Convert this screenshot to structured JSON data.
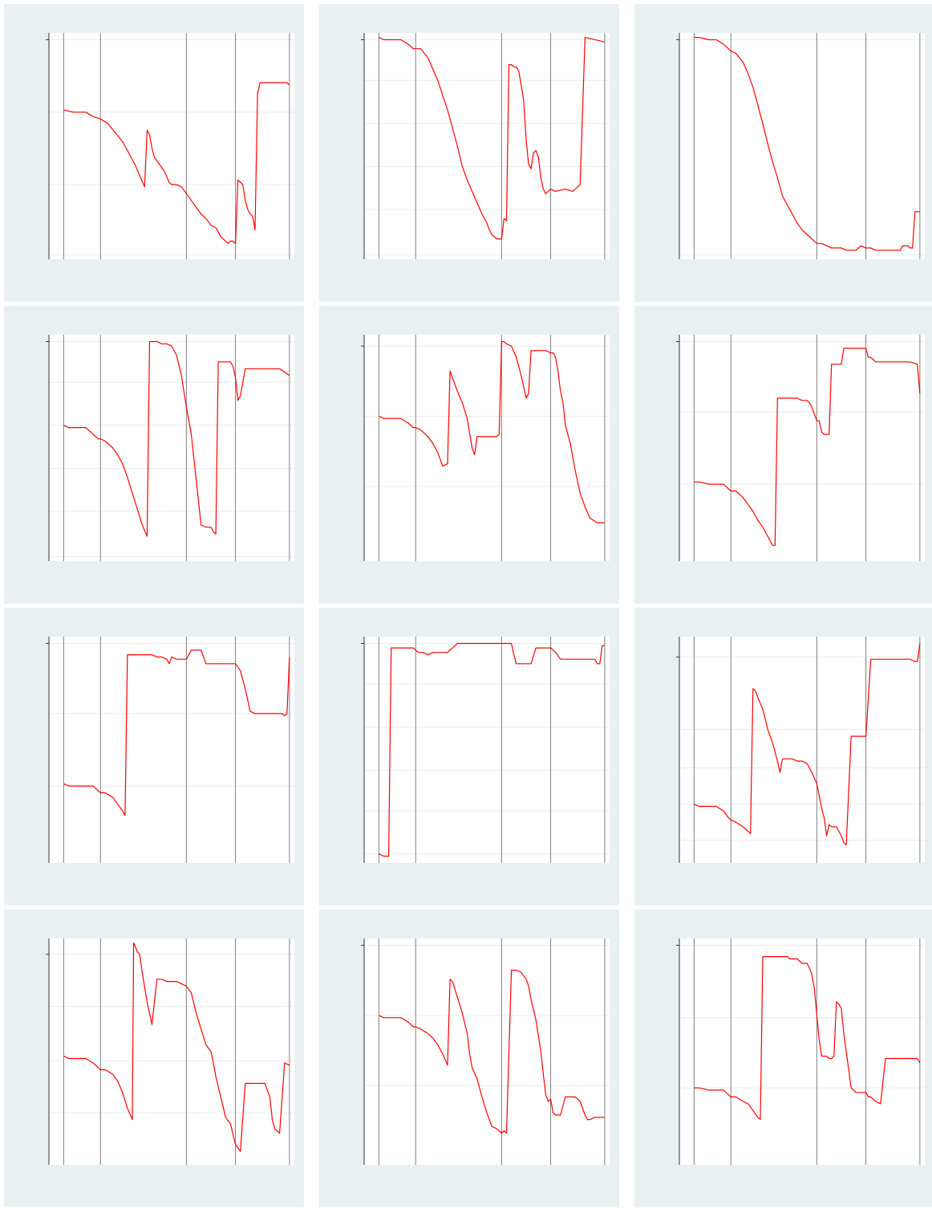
{
  "style": {
    "panel_bg": "#e9f0f2",
    "plot_bg": "#ffffff",
    "grid_color": "#ececec",
    "vline_color": "#7f7f7f",
    "axis_color": "#333333",
    "line_color": "#ff0000"
  },
  "chart_data": [
    {
      "type": "line",
      "xlim": [
        0,
        100
      ],
      "ylim": [
        0,
        100
      ],
      "yticks": [
        2,
        33,
        65,
        97
      ],
      "vlines": [
        6,
        21,
        56,
        76,
        98
      ],
      "grid": true,
      "x": [
        6,
        10,
        15,
        18,
        21,
        24,
        27,
        30,
        35,
        39,
        40,
        41,
        42,
        43,
        45,
        47,
        49,
        50,
        51,
        52,
        54,
        56,
        58,
        60,
        62,
        64,
        66,
        68,
        70,
        72,
        73,
        74,
        75,
        76,
        77,
        78,
        79,
        80,
        81,
        82,
        83,
        84,
        85,
        86,
        87,
        88,
        90,
        94,
        97,
        98
      ],
      "y": [
        66,
        65,
        65,
        63,
        62,
        60,
        56,
        52,
        42,
        32,
        57,
        55,
        49,
        45,
        42,
        39,
        34,
        33,
        33,
        33,
        32,
        29,
        26,
        23,
        20,
        18,
        15,
        14,
        10,
        8,
        7,
        8,
        8,
        7,
        35,
        34,
        33,
        26,
        22,
        20,
        19,
        13,
        73,
        78,
        78,
        78,
        78,
        78,
        78,
        77
      ]
    },
    {
      "type": "line",
      "xlim": [
        0,
        100
      ],
      "ylim": [
        0,
        100
      ],
      "yticks": [
        2,
        22,
        41,
        60,
        79,
        97
      ],
      "vlines": [
        6,
        21,
        56,
        76,
        98
      ],
      "grid": true,
      "x": [
        6,
        8,
        12,
        15,
        18,
        20,
        21,
        23,
        26,
        28,
        30,
        34,
        38,
        40,
        42,
        44,
        46,
        48,
        50,
        51,
        52,
        53,
        54,
        55,
        56,
        57,
        58,
        59,
        60,
        61,
        62,
        63,
        64,
        65,
        66,
        67,
        68,
        69,
        70,
        71,
        72,
        73,
        74,
        76,
        78,
        82,
        85,
        88,
        90,
        98
      ],
      "y": [
        98,
        97,
        97,
        97,
        95,
        93,
        93,
        93,
        89,
        84,
        79,
        66,
        50,
        41,
        35,
        30,
        25,
        20,
        16,
        13,
        11,
        10,
        9,
        9,
        9,
        18,
        17,
        86,
        86,
        85,
        85,
        83,
        77,
        70,
        53,
        42,
        40,
        47,
        48,
        45,
        36,
        31,
        29,
        31,
        30,
        31,
        30,
        33,
        98,
        96
      ]
    },
    {
      "type": "line",
      "xlim": [
        0,
        100
      ],
      "ylim": [
        0,
        100
      ],
      "yticks": [
        2,
        97
      ],
      "vlines": [
        6,
        21,
        56,
        76,
        98
      ],
      "grid": true,
      "x": [
        6,
        8,
        12,
        15,
        18,
        20,
        21,
        23,
        26,
        28,
        30,
        32,
        34,
        36,
        38,
        40,
        42,
        44,
        46,
        48,
        50,
        52,
        54,
        56,
        58,
        60,
        62,
        64,
        66,
        68,
        70,
        72,
        74,
        76,
        78,
        80,
        82,
        84,
        86,
        88,
        90,
        91,
        92,
        93,
        94,
        95,
        96,
        97,
        98
      ],
      "y": [
        98,
        98,
        97,
        97,
        95,
        93,
        92,
        91,
        87,
        82,
        76,
        68,
        60,
        51,
        43,
        36,
        28,
        24,
        20,
        16,
        13,
        11,
        9,
        7,
        7,
        6,
        5,
        5,
        5,
        4,
        4,
        4,
        6,
        5,
        5,
        4,
        4,
        4,
        4,
        4,
        4,
        6,
        6,
        6,
        5,
        5,
        21,
        21,
        21
      ]
    },
    {
      "type": "line",
      "xlim": [
        0,
        100
      ],
      "ylim": [
        0,
        100
      ],
      "yticks": [
        2,
        22,
        41,
        60,
        79,
        97
      ],
      "vlines": [
        6,
        21,
        56,
        76,
        98
      ],
      "grid": true,
      "x": [
        6,
        8,
        12,
        15,
        18,
        20,
        21,
        23,
        26,
        28,
        30,
        32,
        34,
        36,
        38,
        40,
        41,
        42,
        44,
        46,
        48,
        50,
        52,
        54,
        56,
        58,
        60,
        62,
        64,
        66,
        67,
        68,
        69,
        71,
        72,
        73,
        74,
        75,
        76,
        77,
        78,
        80,
        82,
        84,
        86,
        87,
        88,
        90,
        94,
        98
      ],
      "y": [
        60,
        59,
        59,
        59,
        56,
        54,
        54,
        53,
        50,
        47,
        43,
        37,
        30,
        23,
        16,
        11,
        97,
        97,
        97,
        96,
        96,
        95,
        91,
        82,
        68,
        56,
        36,
        16,
        15,
        15,
        13,
        12,
        88,
        88,
        88,
        88,
        88,
        86,
        81,
        71,
        73,
        85,
        85,
        85,
        85,
        85,
        85,
        85,
        85,
        82
      ]
    },
    {
      "type": "line",
      "xlim": [
        0,
        100
      ],
      "ylim": [
        0,
        100
      ],
      "yticks": [
        33,
        64,
        95
      ],
      "vlines": [
        6,
        21,
        56,
        76,
        98
      ],
      "grid": true,
      "x": [
        6,
        8,
        12,
        15,
        18,
        20,
        21,
        23,
        26,
        28,
        30,
        32,
        34,
        35,
        36,
        38,
        40,
        42,
        44,
        45,
        46,
        47,
        48,
        50,
        52,
        54,
        55,
        56,
        57,
        58,
        60,
        62,
        64,
        66,
        67,
        68,
        70,
        72,
        74,
        76,
        77,
        78,
        79,
        80,
        81,
        82,
        84,
        86,
        88,
        90,
        92,
        95,
        98
      ],
      "y": [
        64,
        63,
        63,
        63,
        61,
        59,
        59,
        58,
        55,
        52,
        48,
        42,
        43,
        84,
        81,
        75,
        70,
        63,
        50,
        47,
        55,
        55,
        55,
        55,
        55,
        55,
        56,
        97,
        97,
        96,
        95,
        90,
        82,
        72,
        74,
        93,
        93,
        93,
        93,
        92,
        92,
        90,
        84,
        75,
        70,
        60,
        52,
        40,
        30,
        24,
        19,
        17,
        17
      ]
    },
    {
      "type": "line",
      "xlim": [
        0,
        100
      ],
      "ylim": [
        0,
        100
      ],
      "yticks": [
        34,
        66,
        97
      ],
      "vlines": [
        6,
        21,
        56,
        76,
        98
      ],
      "grid": true,
      "x": [
        6,
        8,
        12,
        15,
        18,
        20,
        21,
        23,
        26,
        28,
        30,
        32,
        34,
        36,
        38,
        39,
        40,
        42,
        44,
        48,
        50,
        52,
        53,
        54,
        55,
        56,
        57,
        58,
        59,
        60,
        61,
        62,
        63,
        64,
        65,
        66,
        67,
        68,
        70,
        72,
        74,
        76,
        77,
        78,
        80,
        84,
        88,
        90,
        92,
        94,
        97,
        98
      ],
      "y": [
        35,
        35,
        34,
        34,
        34,
        32,
        31,
        31,
        28,
        25,
        22,
        18,
        15,
        11,
        7,
        7,
        72,
        72,
        72,
        72,
        71,
        71,
        70,
        68,
        65,
        62,
        62,
        57,
        56,
        56,
        56,
        87,
        87,
        87,
        87,
        87,
        94,
        94,
        94,
        94,
        94,
        94,
        90,
        90,
        88,
        88,
        88,
        88,
        88,
        88,
        87,
        74
      ]
    },
    {
      "type": "line",
      "xlim": [
        0,
        100
      ],
      "ylim": [
        0,
        100
      ],
      "yticks": [
        34,
        66,
        97
      ],
      "vlines": [
        6,
        21,
        56,
        76,
        98
      ],
      "grid": true,
      "x": [
        6,
        8,
        12,
        15,
        18,
        20,
        21,
        23,
        26,
        28,
        30,
        31,
        32,
        34,
        38,
        42,
        44,
        46,
        48,
        49,
        50,
        52,
        54,
        56,
        58,
        60,
        62,
        64,
        66,
        68,
        70,
        74,
        76,
        78,
        79,
        80,
        82,
        84,
        86,
        88,
        90,
        95,
        96,
        97,
        98
      ],
      "y": [
        35,
        34,
        34,
        34,
        34,
        32,
        31,
        31,
        29,
        26,
        23,
        21,
        92,
        92,
        92,
        92,
        91,
        91,
        90,
        88,
        91,
        90,
        90,
        90,
        94,
        94,
        94,
        88,
        88,
        88,
        88,
        88,
        88,
        85,
        81,
        77,
        67,
        66,
        66,
        66,
        66,
        66,
        65,
        66,
        91
      ]
    },
    {
      "type": "line",
      "xlim": [
        0,
        100
      ],
      "ylim": [
        0,
        100
      ],
      "yticks": [
        4,
        23,
        41,
        60,
        79,
        97
      ],
      "vlines": [
        6,
        21,
        56,
        76,
        98
      ],
      "grid": true,
      "x": [
        6,
        8,
        10,
        11,
        12,
        16,
        20,
        22,
        24,
        26,
        28,
        30,
        34,
        38,
        42,
        46,
        50,
        52,
        54,
        56,
        58,
        60,
        61,
        62,
        64,
        66,
        68,
        70,
        72,
        74,
        76,
        78,
        80,
        82,
        84,
        86,
        88,
        90,
        92,
        94,
        95,
        96,
        97,
        98
      ],
      "y": [
        4,
        3,
        3,
        95,
        95,
        95,
        95,
        93,
        93,
        92,
        93,
        93,
        93,
        97,
        97,
        97,
        97,
        97,
        97,
        97,
        97,
        97,
        92,
        88,
        88,
        88,
        88,
        95,
        95,
        95,
        95,
        93,
        90,
        90,
        90,
        90,
        90,
        90,
        90,
        90,
        88,
        88,
        96,
        96
      ]
    },
    {
      "type": "line",
      "xlim": [
        0,
        100
      ],
      "ylim": [
        0,
        100
      ],
      "yticks": [
        10,
        26,
        42,
        59,
        91
      ],
      "vlines": [
        6,
        21,
        56,
        76,
        98
      ],
      "grid": true,
      "x": [
        6,
        8,
        12,
        15,
        18,
        20,
        21,
        23,
        26,
        28,
        29,
        30,
        31,
        32,
        34,
        36,
        38,
        40,
        41,
        42,
        44,
        46,
        48,
        50,
        52,
        54,
        56,
        58,
        59,
        60,
        61,
        62,
        64,
        65,
        66,
        67,
        68,
        70,
        72,
        73,
        74,
        76,
        78,
        80,
        82,
        84,
        90,
        94,
        96,
        97,
        98
      ],
      "y": [
        26,
        25,
        25,
        25,
        23,
        20,
        19,
        18,
        16,
        14,
        13,
        77,
        76,
        73,
        68,
        59,
        53,
        45,
        40,
        46,
        46,
        46,
        45,
        45,
        44,
        40,
        35,
        24,
        20,
        12,
        17,
        16,
        16,
        14,
        12,
        9,
        8,
        56,
        56,
        56,
        56,
        56,
        90,
        90,
        90,
        90,
        90,
        90,
        89,
        89,
        97
      ]
    },
    {
      "type": "line",
      "xlim": [
        0,
        100
      ],
      "ylim": [
        0,
        100
      ],
      "yticks": [
        23,
        46,
        70,
        93
      ],
      "vlines": [
        6,
        21,
        56,
        76,
        98
      ],
      "grid": true,
      "x": [
        6,
        8,
        12,
        15,
        18,
        20,
        21,
        23,
        26,
        28,
        30,
        32,
        34,
        34.5,
        35,
        36,
        37,
        38,
        40,
        42,
        44,
        46,
        48,
        50,
        52,
        54,
        56,
        58,
        60,
        62,
        64,
        66,
        67,
        68,
        70,
        72,
        74,
        76,
        78,
        80,
        82,
        84,
        86,
        88,
        89,
        90,
        91,
        92,
        94,
        96,
        98
      ],
      "y": [
        48,
        47,
        47,
        47,
        45,
        43,
        42,
        42,
        40,
        37,
        32,
        25,
        20,
        98,
        97,
        94,
        93,
        85,
        72,
        62,
        82,
        82,
        81,
        81,
        81,
        80,
        79,
        76,
        67,
        60,
        53,
        50,
        45,
        39,
        30,
        21,
        18,
        9,
        6,
        36,
        36,
        36,
        36,
        36,
        33,
        30,
        20,
        16,
        14,
        45,
        44
      ]
    },
    {
      "type": "line",
      "xlim": [
        0,
        100
      ],
      "ylim": [
        0,
        100
      ],
      "yticks": [
        35,
        66,
        97
      ],
      "vlines": [
        6,
        21,
        56,
        76,
        98
      ],
      "grid": true,
      "x": [
        6,
        8,
        12,
        15,
        18,
        20,
        21,
        23,
        26,
        28,
        30,
        32,
        34,
        35,
        36,
        38,
        40,
        42,
        43,
        44,
        46,
        48,
        50,
        52,
        54,
        55,
        56,
        57,
        58,
        60,
        62,
        64,
        66,
        67,
        68,
        70,
        72,
        73,
        74,
        75,
        76,
        77,
        78,
        80,
        82,
        84,
        86,
        88,
        90,
        91,
        92,
        94,
        96,
        98
      ],
      "y": [
        66,
        65,
        65,
        65,
        63,
        61,
        61,
        60,
        58,
        56,
        53,
        49,
        44,
        82,
        81,
        74,
        67,
        58,
        49,
        43,
        38,
        30,
        23,
        17,
        16,
        15,
        14,
        15,
        14,
        86,
        86,
        85,
        82,
        79,
        73,
        64,
        50,
        40,
        31,
        28,
        29,
        23,
        22,
        22,
        30,
        30,
        30,
        28,
        22,
        20,
        20,
        21,
        21,
        21
      ]
    },
    {
      "type": "line",
      "xlim": [
        0,
        100
      ],
      "ylim": [
        0,
        100
      ],
      "yticks": [
        34,
        65,
        97
      ],
      "vlines": [
        6,
        21,
        56,
        76,
        98
      ],
      "grid": true,
      "x": [
        6,
        8,
        12,
        15,
        18,
        20,
        21,
        23,
        26,
        28,
        30,
        32,
        33,
        34,
        35,
        36,
        38,
        40,
        42,
        44,
        45,
        46,
        48,
        50,
        52,
        53,
        54,
        55,
        56,
        57,
        58,
        60,
        61,
        62,
        63,
        64,
        65,
        66,
        67,
        68,
        70,
        72,
        74,
        76,
        77,
        78,
        80,
        82,
        84,
        86,
        88,
        90,
        92,
        94,
        96,
        97,
        98
      ],
      "y": [
        34,
        34,
        33,
        33,
        33,
        31,
        30,
        30,
        28,
        27,
        24,
        21,
        20,
        92,
        92,
        92,
        92,
        92,
        92,
        92,
        91,
        91,
        91,
        89,
        89,
        87,
        84,
        78,
        66,
        55,
        48,
        48,
        47,
        47,
        48,
        72,
        71,
        69,
        58,
        50,
        34,
        32,
        32,
        32,
        30,
        30,
        28,
        27,
        47,
        47,
        47,
        47,
        47,
        47,
        47,
        47,
        45
      ]
    }
  ]
}
